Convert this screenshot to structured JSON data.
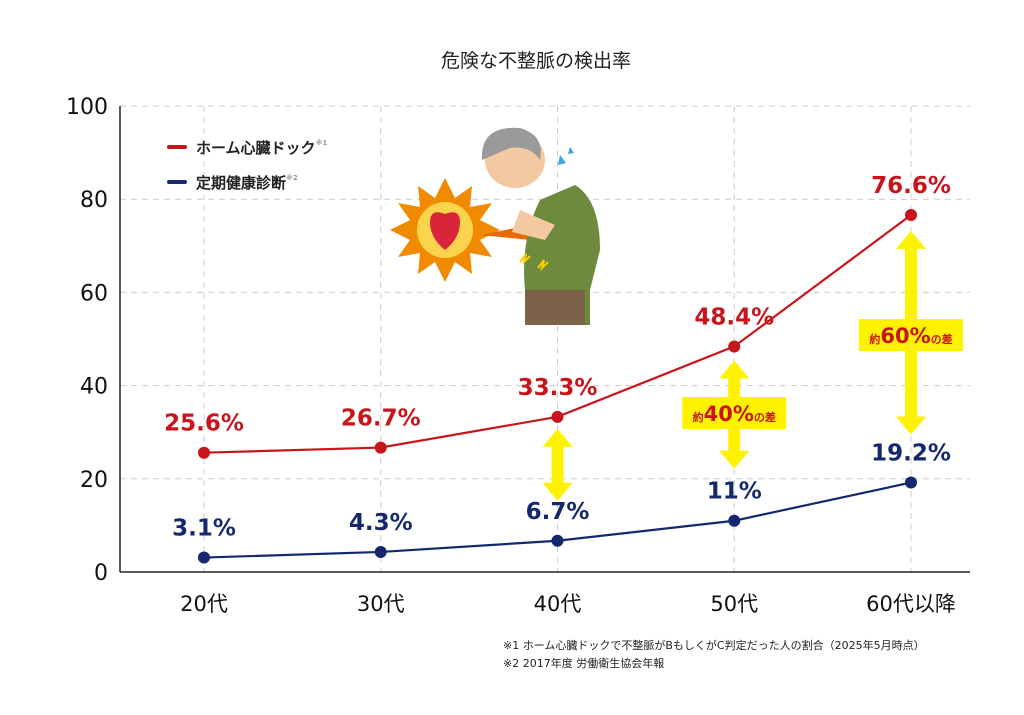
{
  "chart_data": {
    "type": "line",
    "title": "危険な不整脈の検出率",
    "categories": [
      "20代",
      "30代",
      "40代",
      "50代",
      "60代以降"
    ],
    "ylim": [
      0,
      100
    ],
    "yticks": [
      "0",
      "20",
      "40",
      "60",
      "80",
      "100"
    ],
    "grid": true,
    "legend_position": "top-left",
    "series": [
      {
        "name": "ホーム心臓ドック",
        "note": "※1",
        "color": "#c8151b",
        "values": [
          25.6,
          26.7,
          33.3,
          48.4,
          76.6
        ],
        "labels": [
          "25.6%",
          "26.7%",
          "33.3%",
          "48.4%",
          "76.6%"
        ]
      },
      {
        "name": "定期健康診断",
        "note": "※2",
        "color": "#15286e",
        "values": [
          3.1,
          4.3,
          6.7,
          11,
          19.2
        ],
        "labels": [
          "3.1%",
          "4.3%",
          "6.7%",
          "11%",
          "19.2%"
        ]
      }
    ],
    "annotations": [
      {
        "category": "50代",
        "prefix": "約",
        "value": "40%",
        "suffix": "の差"
      },
      {
        "category": "60代以降",
        "prefix": "約",
        "value": "60%",
        "suffix": "の差"
      }
    ],
    "highlight_color": "#fff200"
  },
  "footnotes": [
    "※1 ホーム心臓ドックで不整脈がBもしくがC判定だった人の割合（2025年5月時点）",
    "※2 2017年度 労働衛生協会年報"
  ]
}
